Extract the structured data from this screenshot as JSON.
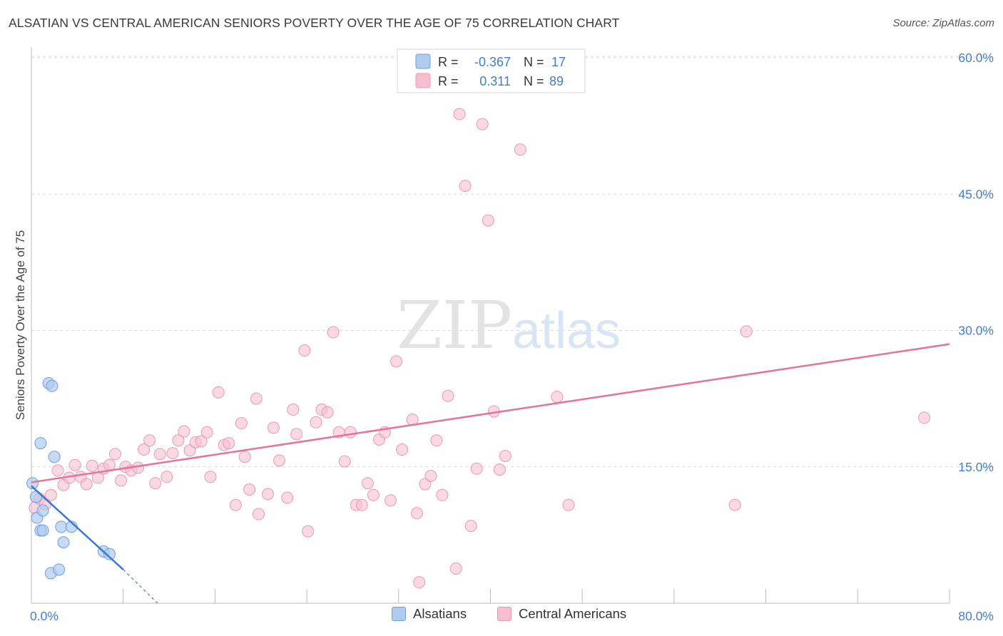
{
  "header": {
    "title": "ALSATIAN VS CENTRAL AMERICAN SENIORS POVERTY OVER THE AGE OF 75 CORRELATION CHART",
    "source": "Source: ZipAtlas.com"
  },
  "watermark": {
    "zip": "ZIP",
    "atlas": "atlas"
  },
  "colors": {
    "blue_fill": "#aecbf0",
    "blue_stroke": "#6f9fdc",
    "blue_line": "#3b78d4",
    "pink_fill": "#f6bfd0",
    "pink_stroke": "#ea98b3",
    "pink_line": "#e7729a",
    "axis_label": "#3f7fd0",
    "grid": "#d8d8d8"
  },
  "legend_top": {
    "rows": [
      {
        "r_label": "R =",
        "r_value": "-0.367",
        "n_label": "N =",
        "n_value": "17"
      },
      {
        "r_label": "R =",
        "r_value": "0.311",
        "n_label": "N =",
        "n_value": "89"
      }
    ]
  },
  "legend_bottom": [
    {
      "label": "Alsatians"
    },
    {
      "label": "Central Americans"
    }
  ],
  "chart_data": {
    "type": "scatter",
    "title": "ALSATIAN VS CENTRAL AMERICAN SENIORS POVERTY OVER THE AGE OF 75 CORRELATION CHART",
    "xlabel": "",
    "ylabel": "Seniors Poverty Over the Age of 75",
    "xlim": [
      0,
      80
    ],
    "ylim": [
      0,
      62
    ],
    "x_tick_labels": [
      "0.0%",
      "80.0%"
    ],
    "y_ticks": [
      15,
      30,
      45,
      60
    ],
    "y_tick_labels": [
      "15.0%",
      "30.0%",
      "45.0%",
      "60.0%"
    ],
    "grid": true,
    "legend_placement": "top-center",
    "series": [
      {
        "name": "Alsatians",
        "color": "#aecbf0",
        "r": -0.367,
        "n": 17,
        "trend": {
          "x": [
            0,
            8
          ],
          "y": [
            12.9,
            3.7
          ],
          "dashed_to": [
            11,
            0
          ]
        },
        "points": [
          [
            0.1,
            13.2
          ],
          [
            0.4,
            11.7
          ],
          [
            0.5,
            9.4
          ],
          [
            0.8,
            8.0
          ],
          [
            0.8,
            17.6
          ],
          [
            1.0,
            8.0
          ],
          [
            1.0,
            10.2
          ],
          [
            1.5,
            24.2
          ],
          [
            1.8,
            23.9
          ],
          [
            1.7,
            3.3
          ],
          [
            2.0,
            16.1
          ],
          [
            2.4,
            3.7
          ],
          [
            2.6,
            8.4
          ],
          [
            2.8,
            6.7
          ],
          [
            3.5,
            8.4
          ],
          [
            6.3,
            5.7
          ],
          [
            6.8,
            5.4
          ]
        ]
      },
      {
        "name": "Central Americans",
        "color": "#f6bfd0",
        "r": 0.311,
        "n": 89,
        "trend": {
          "x": [
            0,
            80
          ],
          "y": [
            13.3,
            28.5
          ]
        },
        "points": [
          [
            0.3,
            10.5
          ],
          [
            0.7,
            11.5
          ],
          [
            1.2,
            10.9
          ],
          [
            1.7,
            11.9
          ],
          [
            2.3,
            14.6
          ],
          [
            2.8,
            13.0
          ],
          [
            3.3,
            13.8
          ],
          [
            3.8,
            15.2
          ],
          [
            4.3,
            13.9
          ],
          [
            4.8,
            13.1
          ],
          [
            5.3,
            15.1
          ],
          [
            5.8,
            13.8
          ],
          [
            6.3,
            14.8
          ],
          [
            6.8,
            15.2
          ],
          [
            7.3,
            16.4
          ],
          [
            7.8,
            13.5
          ],
          [
            8.2,
            15.0
          ],
          [
            8.7,
            14.6
          ],
          [
            9.3,
            14.9
          ],
          [
            9.8,
            16.9
          ],
          [
            10.3,
            17.9
          ],
          [
            10.8,
            13.2
          ],
          [
            11.2,
            16.4
          ],
          [
            11.8,
            13.9
          ],
          [
            12.3,
            16.5
          ],
          [
            12.8,
            17.9
          ],
          [
            13.3,
            18.9
          ],
          [
            13.8,
            16.8
          ],
          [
            14.3,
            17.7
          ],
          [
            14.8,
            17.8
          ],
          [
            15.3,
            18.8
          ],
          [
            15.6,
            13.9
          ],
          [
            16.3,
            23.2
          ],
          [
            16.8,
            17.4
          ],
          [
            17.2,
            17.6
          ],
          [
            17.8,
            10.8
          ],
          [
            18.3,
            19.8
          ],
          [
            18.6,
            16.1
          ],
          [
            19.0,
            12.5
          ],
          [
            19.6,
            22.5
          ],
          [
            19.8,
            9.8
          ],
          [
            20.6,
            12.0
          ],
          [
            21.1,
            19.3
          ],
          [
            21.6,
            15.7
          ],
          [
            22.3,
            11.6
          ],
          [
            22.8,
            21.3
          ],
          [
            23.1,
            18.6
          ],
          [
            23.8,
            27.8
          ],
          [
            24.1,
            7.9
          ],
          [
            24.8,
            19.9
          ],
          [
            25.3,
            21.3
          ],
          [
            25.8,
            21.0
          ],
          [
            26.3,
            29.8
          ],
          [
            26.8,
            18.8
          ],
          [
            27.3,
            15.6
          ],
          [
            27.8,
            18.8
          ],
          [
            28.3,
            10.8
          ],
          [
            28.8,
            10.8
          ],
          [
            29.3,
            13.2
          ],
          [
            29.8,
            11.9
          ],
          [
            30.3,
            18.0
          ],
          [
            30.8,
            18.8
          ],
          [
            31.3,
            11.3
          ],
          [
            31.8,
            26.6
          ],
          [
            32.3,
            16.9
          ],
          [
            33.2,
            20.2
          ],
          [
            33.6,
            9.9
          ],
          [
            34.3,
            13.1
          ],
          [
            34.8,
            14.0
          ],
          [
            35.3,
            17.9
          ],
          [
            35.8,
            11.9
          ],
          [
            36.3,
            22.8
          ],
          [
            37.0,
            3.8
          ],
          [
            37.3,
            53.8
          ],
          [
            37.8,
            45.9
          ],
          [
            38.3,
            8.5
          ],
          [
            38.8,
            14.8
          ],
          [
            39.3,
            52.7
          ],
          [
            39.8,
            42.1
          ],
          [
            40.3,
            21.1
          ],
          [
            40.8,
            14.7
          ],
          [
            41.3,
            16.2
          ],
          [
            42.6,
            49.9
          ],
          [
            45.8,
            22.7
          ],
          [
            46.8,
            10.8
          ],
          [
            61.3,
            10.8
          ],
          [
            62.3,
            29.9
          ],
          [
            77.8,
            20.4
          ],
          [
            33.8,
            2.3
          ]
        ]
      }
    ]
  }
}
